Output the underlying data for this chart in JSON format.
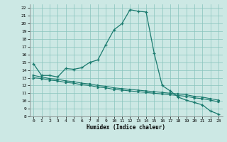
{
  "xlabel": "Humidex (Indice chaleur)",
  "background_color": "#cce8e4",
  "grid_color": "#88c4bc",
  "line_color": "#1a7a6e",
  "xlim": [
    -0.5,
    23.5
  ],
  "ylim": [
    8,
    22.5
  ],
  "xticks": [
    0,
    1,
    2,
    3,
    4,
    5,
    6,
    7,
    8,
    9,
    10,
    11,
    12,
    13,
    14,
    15,
    16,
    17,
    18,
    19,
    20,
    21,
    22,
    23
  ],
  "yticks": [
    8,
    9,
    10,
    11,
    12,
    13,
    14,
    15,
    16,
    17,
    18,
    19,
    20,
    21,
    22
  ],
  "curve1_x": [
    0,
    1,
    2,
    3,
    4,
    5,
    6,
    7,
    8,
    9,
    10,
    11,
    12,
    13,
    14,
    15,
    16,
    17,
    18,
    19,
    20,
    21,
    22,
    23
  ],
  "curve1_y": [
    14.8,
    13.3,
    13.3,
    13.1,
    14.2,
    14.1,
    14.3,
    15.0,
    15.3,
    17.3,
    19.2,
    20.0,
    21.8,
    21.6,
    21.5,
    16.2,
    12.0,
    11.3,
    10.5,
    10.1,
    9.8,
    9.5,
    8.7,
    8.3
  ],
  "curve2_x": [
    0,
    1,
    2,
    3,
    4,
    5,
    6,
    7,
    8,
    9,
    10,
    11,
    12,
    13,
    14,
    15,
    16,
    17,
    18,
    19,
    20,
    21,
    22,
    23
  ],
  "curve2_y": [
    13.3,
    13.1,
    12.9,
    12.8,
    12.6,
    12.5,
    12.3,
    12.2,
    12.0,
    11.9,
    11.7,
    11.6,
    11.5,
    11.4,
    11.3,
    11.2,
    11.1,
    11.0,
    10.9,
    10.8,
    10.6,
    10.5,
    10.3,
    10.1
  ],
  "curve3_x": [
    0,
    1,
    2,
    3,
    4,
    5,
    6,
    7,
    8,
    9,
    10,
    11,
    12,
    13,
    14,
    15,
    16,
    17,
    18,
    19,
    20,
    21,
    22,
    23
  ],
  "curve3_y": [
    13.0,
    12.9,
    12.7,
    12.6,
    12.4,
    12.3,
    12.1,
    12.0,
    11.8,
    11.7,
    11.5,
    11.4,
    11.3,
    11.2,
    11.1,
    11.0,
    10.9,
    10.8,
    10.7,
    10.6,
    10.4,
    10.3,
    10.1,
    9.9
  ]
}
